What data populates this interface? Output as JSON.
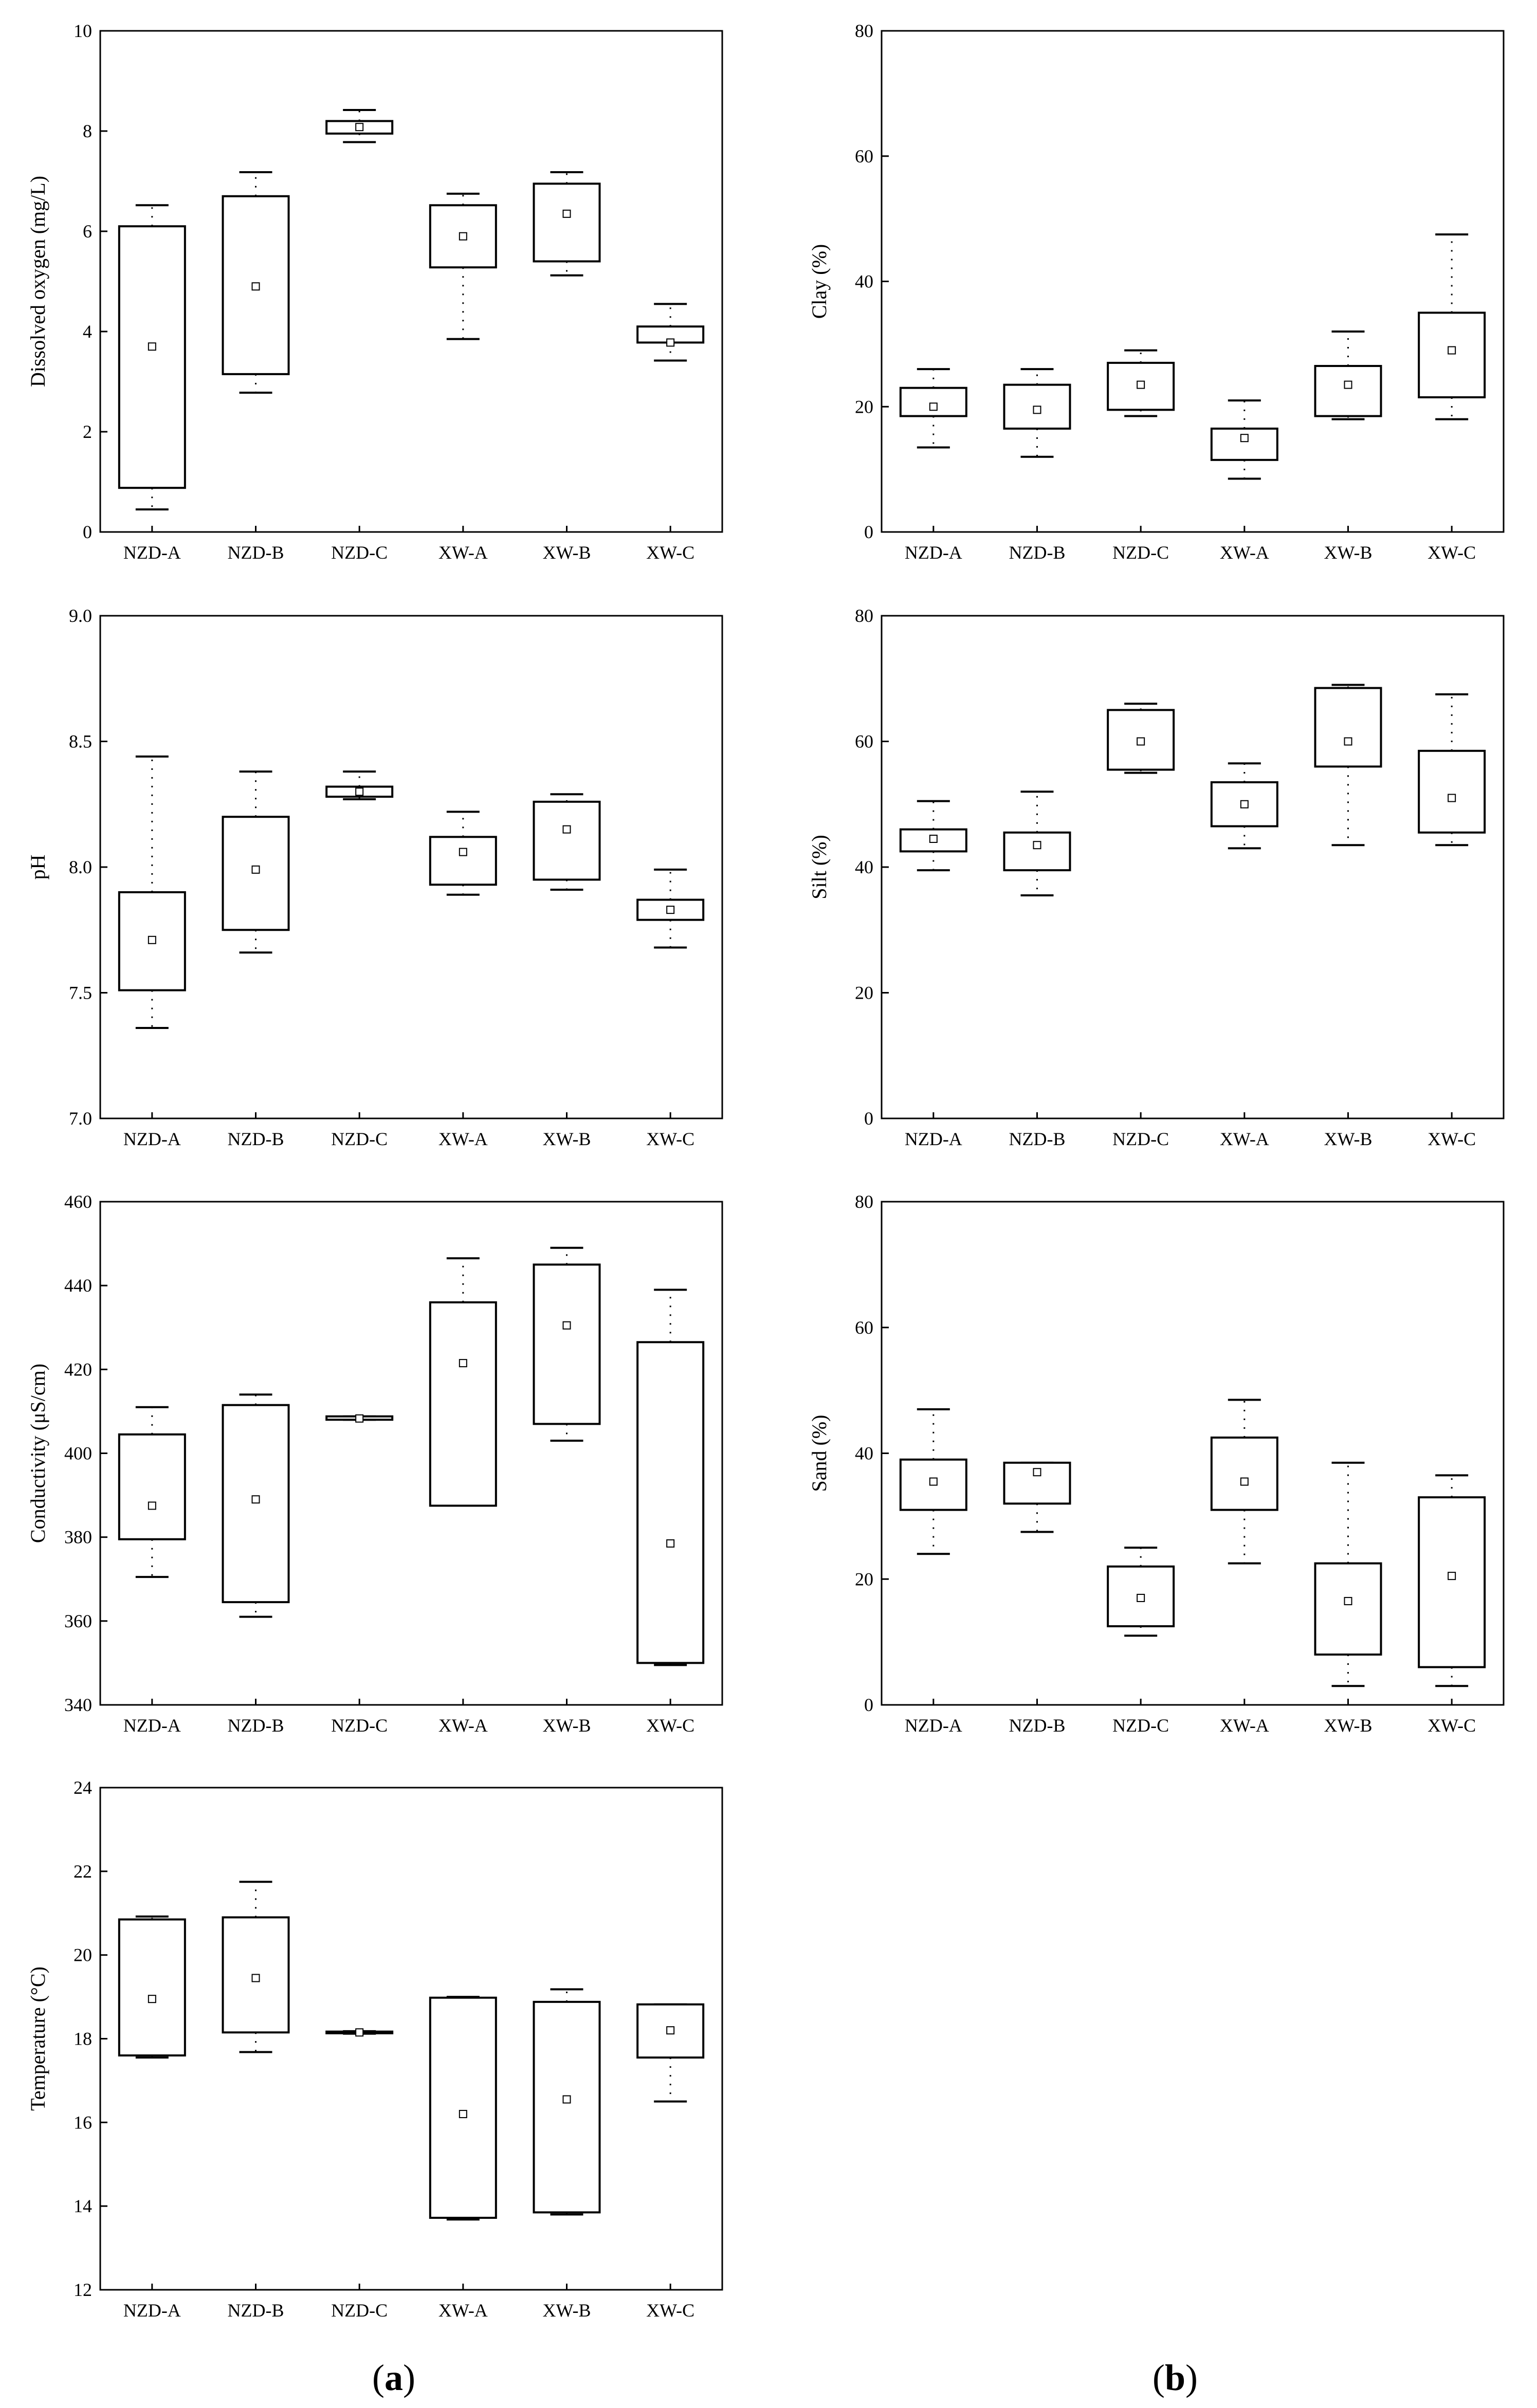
{
  "panels": [
    {
      "label": "a",
      "open": "(",
      "close": ")"
    },
    {
      "label": "b",
      "open": "(",
      "close": ")"
    }
  ],
  "chart_data": [
    {
      "type": "box",
      "ylabel": "Dissolved oxygen (mg/L)",
      "ylim": [
        0,
        10
      ],
      "yticks": [
        0,
        2,
        4,
        6,
        8,
        10
      ],
      "categories": [
        "NZD-A",
        "NZD-B",
        "NZD-C",
        "XW-A",
        "XW-B",
        "XW-C"
      ],
      "boxes": [
        {
          "min": 0.45,
          "q1": 0.88,
          "q3": 6.1,
          "max": 6.52,
          "mean": 3.7
        },
        {
          "min": 2.78,
          "q1": 3.15,
          "q3": 6.7,
          "max": 7.18,
          "mean": 4.9
        },
        {
          "min": 7.78,
          "q1": 7.95,
          "q3": 8.2,
          "max": 8.42,
          "mean": 8.08
        },
        {
          "min": 3.85,
          "q1": 5.28,
          "q3": 6.52,
          "max": 6.75,
          "mean": 5.9
        },
        {
          "min": 5.12,
          "q1": 5.4,
          "q3": 6.95,
          "max": 7.18,
          "mean": 6.35
        },
        {
          "min": 3.42,
          "q1": 3.78,
          "q3": 4.1,
          "max": 4.55,
          "mean": 3.78
        }
      ]
    },
    {
      "type": "box",
      "ylabel": "pH",
      "ylim": [
        7.0,
        9.0
      ],
      "yticks": [
        "7.0",
        "7.5",
        "8.0",
        "8.5",
        "9.0"
      ],
      "categories": [
        "NZD-A",
        "NZD-B",
        "NZD-C",
        "XW-A",
        "XW-B",
        "XW-C"
      ],
      "boxes": [
        {
          "min": 7.36,
          "q1": 7.51,
          "q3": 7.9,
          "max": 8.44,
          "mean": 7.71
        },
        {
          "min": 7.66,
          "q1": 7.75,
          "q3": 8.2,
          "max": 8.38,
          "mean": 7.99
        },
        {
          "min": 8.27,
          "q1": 8.28,
          "q3": 8.32,
          "max": 8.38,
          "mean": 8.3
        },
        {
          "min": 7.89,
          "q1": 7.93,
          "q3": 8.12,
          "max": 8.22,
          "mean": 8.06
        },
        {
          "min": 7.91,
          "q1": 7.95,
          "q3": 8.26,
          "max": 8.29,
          "mean": 8.15
        },
        {
          "min": 7.68,
          "q1": 7.79,
          "q3": 7.87,
          "max": 7.99,
          "mean": 7.83
        }
      ]
    },
    {
      "type": "box",
      "ylabel": "Conductivity (μS/cm)",
      "ylim": [
        340,
        460
      ],
      "yticks": [
        340,
        360,
        380,
        400,
        420,
        440,
        460
      ],
      "categories": [
        "NZD-A",
        "NZD-B",
        "NZD-C",
        "XW-A",
        "XW-B",
        "XW-C"
      ],
      "boxes": [
        {
          "min": 370.5,
          "q1": 379.5,
          "q3": 404.5,
          "max": 411,
          "mean": 387.5
        },
        {
          "min": 361,
          "q1": 364.5,
          "q3": 411.5,
          "max": 414,
          "mean": 389
        },
        {
          "min": 408,
          "q1": 408,
          "q3": 408.8,
          "max": 408.8,
          "mean": 408.3
        },
        {
          "min": 387.5,
          "q1": 387.5,
          "q3": 436,
          "max": 446.5,
          "mean": 421.5
        },
        {
          "min": 403,
          "q1": 407,
          "q3": 445,
          "max": 449,
          "mean": 430.5
        },
        {
          "min": 349.5,
          "q1": 350,
          "q3": 426.5,
          "max": 439,
          "mean": 378.5
        }
      ]
    },
    {
      "type": "box",
      "ylabel": "Temperature (°C)",
      "ylim": [
        12,
        24
      ],
      "yticks": [
        12,
        14,
        16,
        18,
        20,
        22,
        24
      ],
      "categories": [
        "NZD-A",
        "NZD-B",
        "NZD-C",
        "XW-A",
        "XW-B",
        "XW-C"
      ],
      "boxes": [
        {
          "min": 17.55,
          "q1": 17.6,
          "q3": 20.85,
          "max": 20.92,
          "mean": 18.95
        },
        {
          "min": 17.68,
          "q1": 18.15,
          "q3": 20.9,
          "max": 21.75,
          "mean": 19.45
        },
        {
          "min": 18.12,
          "q1": 18.13,
          "q3": 18.17,
          "max": 18.18,
          "mean": 18.15
        },
        {
          "min": 13.68,
          "q1": 13.72,
          "q3": 18.98,
          "max": 19.0,
          "mean": 16.2
        },
        {
          "min": 13.8,
          "q1": 13.85,
          "q3": 18.88,
          "max": 19.18,
          "mean": 16.55
        },
        {
          "min": 16.5,
          "q1": 17.55,
          "q3": 18.82,
          "max": 18.82,
          "mean": 18.2
        }
      ]
    },
    {
      "type": "box",
      "ylabel": "Clay (%)",
      "ylim": [
        0,
        80
      ],
      "yticks": [
        0,
        20,
        40,
        60,
        80
      ],
      "categories": [
        "NZD-A",
        "NZD-B",
        "NZD-C",
        "XW-A",
        "XW-B",
        "XW-C"
      ],
      "boxes": [
        {
          "min": 13.5,
          "q1": 18.5,
          "q3": 23,
          "max": 26,
          "mean": 20
        },
        {
          "min": 12,
          "q1": 16.5,
          "q3": 23.5,
          "max": 26,
          "mean": 19.5
        },
        {
          "min": 18.5,
          "q1": 19.5,
          "q3": 27,
          "max": 29,
          "mean": 23.5
        },
        {
          "min": 8.5,
          "q1": 11.5,
          "q3": 16.5,
          "max": 21,
          "mean": 15
        },
        {
          "min": 18,
          "q1": 18.5,
          "q3": 26.5,
          "max": 32,
          "mean": 23.5
        },
        {
          "min": 18,
          "q1": 21.5,
          "q3": 35,
          "max": 47.5,
          "mean": 29
        }
      ]
    },
    {
      "type": "box",
      "ylabel": "Silt (%)",
      "ylim": [
        0,
        80
      ],
      "yticks": [
        0,
        20,
        40,
        60,
        80
      ],
      "categories": [
        "NZD-A",
        "NZD-B",
        "NZD-C",
        "XW-A",
        "XW-B",
        "XW-C"
      ],
      "boxes": [
        {
          "min": 39.5,
          "q1": 42.5,
          "q3": 46,
          "max": 50.5,
          "mean": 44.5
        },
        {
          "min": 35.5,
          "q1": 39.5,
          "q3": 45.5,
          "max": 52,
          "mean": 43.5
        },
        {
          "min": 55,
          "q1": 55.5,
          "q3": 65,
          "max": 66,
          "mean": 60
        },
        {
          "min": 43,
          "q1": 46.5,
          "q3": 53.5,
          "max": 56.5,
          "mean": 50
        },
        {
          "min": 43.5,
          "q1": 56,
          "q3": 68.5,
          "max": 69,
          "mean": 60
        },
        {
          "min": 43.5,
          "q1": 45.5,
          "q3": 58.5,
          "max": 67.5,
          "mean": 51
        }
      ]
    },
    {
      "type": "box",
      "ylabel": "Sand (%)",
      "ylim": [
        0,
        80
      ],
      "yticks": [
        0,
        20,
        40,
        60,
        80
      ],
      "categories": [
        "NZD-A",
        "NZD-B",
        "NZD-C",
        "XW-A",
        "XW-B",
        "XW-C"
      ],
      "boxes": [
        {
          "min": 24,
          "q1": 31,
          "q3": 39,
          "max": 47,
          "mean": 35.5
        },
        {
          "min": 27.5,
          "q1": 32,
          "q3": 38.5,
          "max": 38.5,
          "mean": 37
        },
        {
          "min": 11,
          "q1": 12.5,
          "q3": 22,
          "max": 25,
          "mean": 17
        },
        {
          "min": 22.5,
          "q1": 31,
          "q3": 42.5,
          "max": 48.5,
          "mean": 35.5
        },
        {
          "min": 3,
          "q1": 8,
          "q3": 22.5,
          "max": 38.5,
          "mean": 16.5
        },
        {
          "min": 3,
          "q1": 6,
          "q3": 33,
          "max": 36.5,
          "mean": 20.5
        }
      ]
    }
  ]
}
